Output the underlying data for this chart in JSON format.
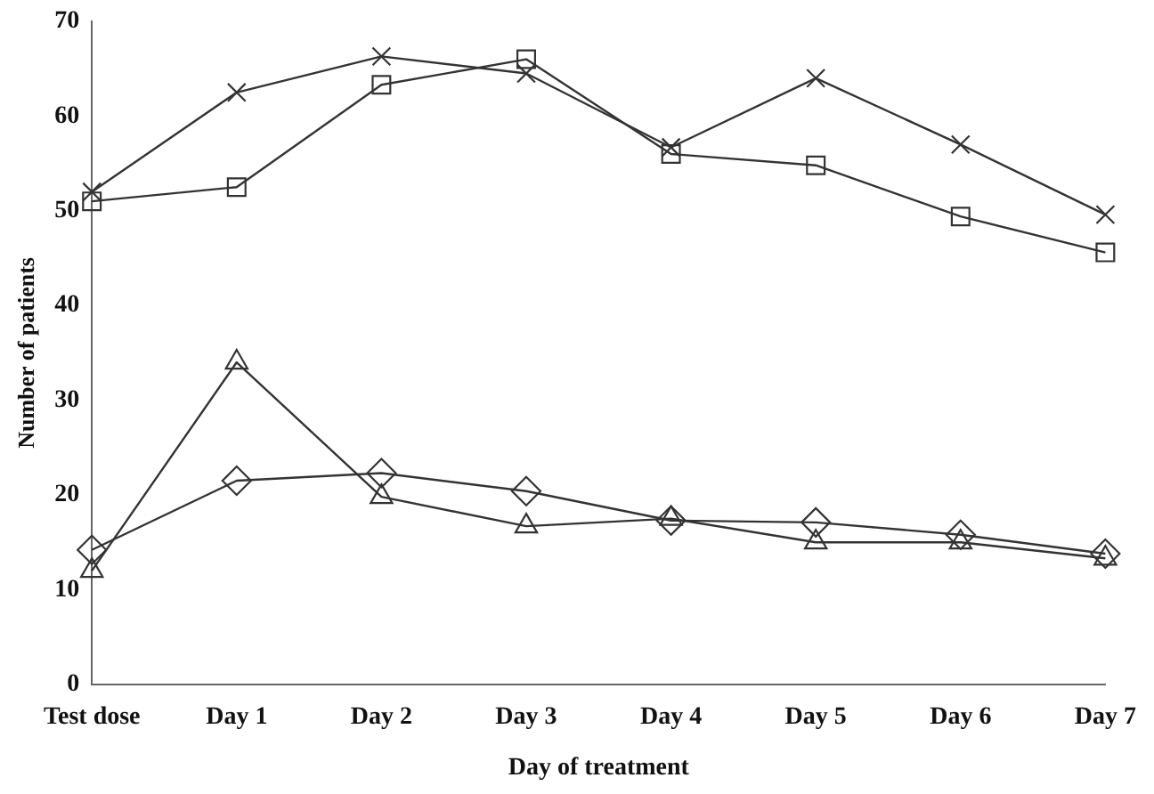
{
  "chart_data": {
    "type": "line",
    "xlabel": "Day of treatment",
    "ylabel": "Number of patients",
    "categories": [
      "Test dose",
      "Day 1",
      "Day 2",
      "Day 3",
      "Day 4",
      "Day 5",
      "Day 6",
      "Day 7"
    ],
    "series": [
      {
        "color": "#333333",
        "marker": "cross",
        "values": [
          52,
          62.5,
          66.3,
          64.5,
          56.7,
          64,
          57,
          49.6
        ]
      },
      {
        "color": "#333333",
        "marker": "square",
        "values": [
          51,
          52.5,
          63.3,
          66,
          56,
          54.8,
          49.4,
          45.6
        ]
      },
      {
        "color": "#333333",
        "marker": "triangle",
        "values": [
          12,
          34,
          19.8,
          16.7,
          17.5,
          15,
          15,
          13.3
        ]
      },
      {
        "color": "#333333",
        "marker": "diamond",
        "values": [
          14.2,
          21.5,
          22.3,
          20.4,
          17.3,
          17.1,
          15.8,
          13.8
        ]
      }
    ],
    "ylim": [
      0,
      70
    ],
    "yticks": [
      0,
      10,
      20,
      30,
      40,
      50,
      60,
      70
    ],
    "grid": false,
    "legend": false,
    "line_style": "solid"
  }
}
